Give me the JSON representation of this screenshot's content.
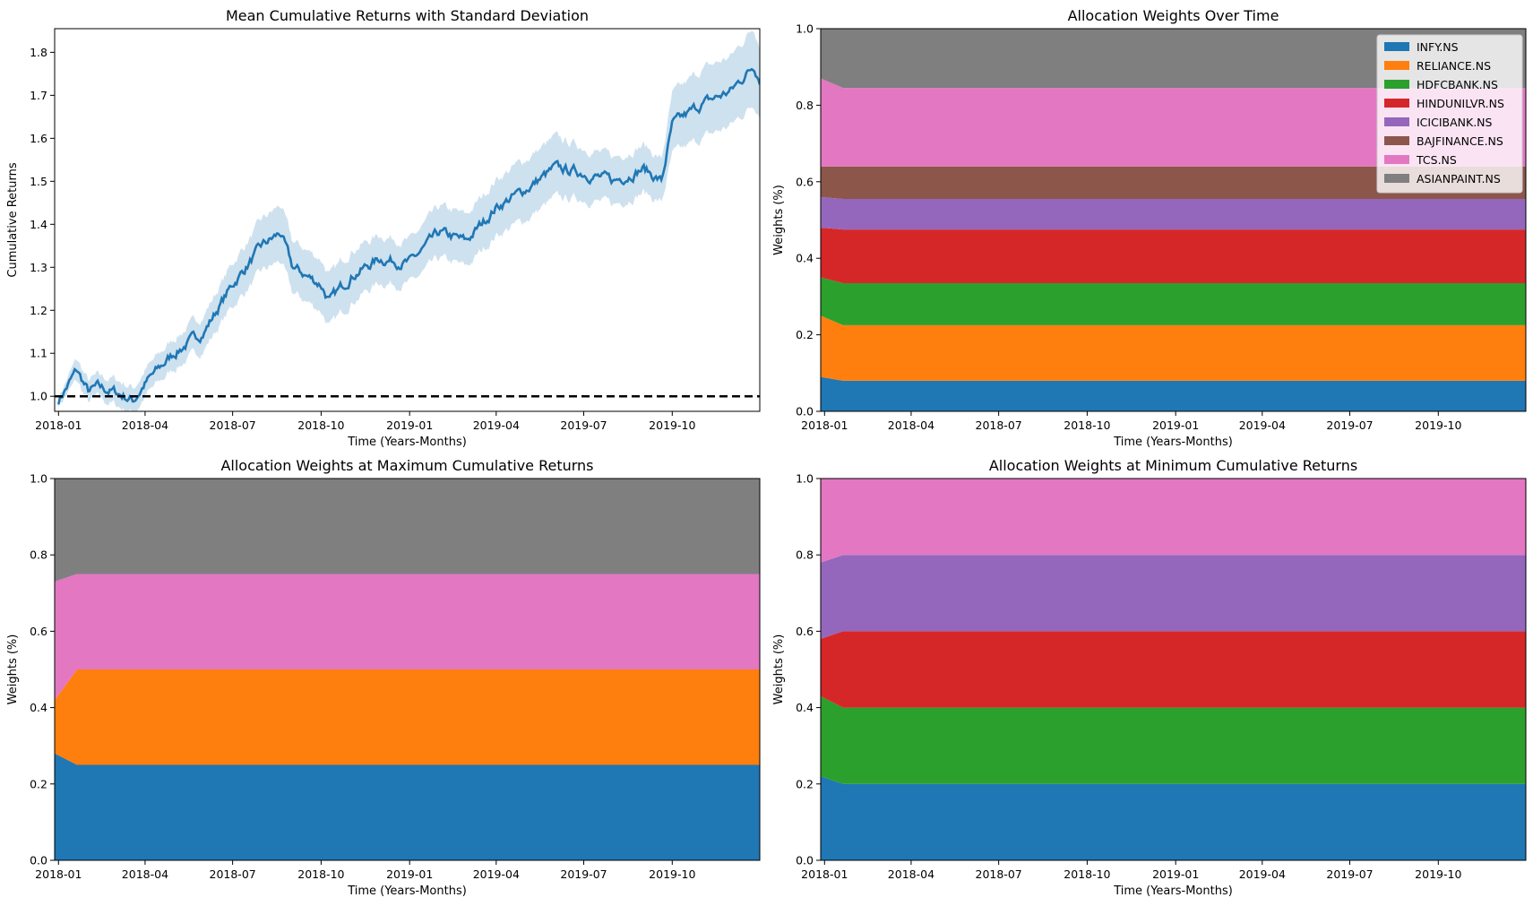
{
  "stocks": [
    {
      "name": "INFY.NS",
      "color": "#1f77b4"
    },
    {
      "name": "RELIANCE.NS",
      "color": "#ff7f0e"
    },
    {
      "name": "HDFCBANK.NS",
      "color": "#2ca02c"
    },
    {
      "name": "HINDUNILVR.NS",
      "color": "#d62728"
    },
    {
      "name": "ICICIBANK.NS",
      "color": "#9467bd"
    },
    {
      "name": "BAJFINANCE.NS",
      "color": "#8c564b"
    },
    {
      "name": "TCS.NS",
      "color": "#e377c2"
    },
    {
      "name": "ASIANPAINT.NS",
      "color": "#7f7f7f"
    }
  ],
  "x_ticks": [
    "2018-01",
    "2018-04",
    "2018-07",
    "2018-10",
    "2019-01",
    "2019-04",
    "2019-07",
    "2019-10"
  ],
  "chart_data": [
    {
      "type": "line",
      "title": "Mean Cumulative Returns with Standard Deviation",
      "xlabel": "Time (Years-Months)",
      "ylabel": "Cumulative Returns",
      "xlim": [
        "2017-12-28",
        "2019-12-31"
      ],
      "ylim": [
        0.965,
        1.855
      ],
      "y_ticks": [
        "1.0",
        "1.1",
        "1.2",
        "1.3",
        "1.4",
        "1.5",
        "1.6",
        "1.7",
        "1.8"
      ],
      "reference_line": {
        "y": 1.0,
        "style": "dashed",
        "color": "#000000"
      },
      "line_color": "#1f77b4",
      "band_color": "#1f77b4",
      "series": [
        {
          "dates": [
            "2018-01-01",
            "2018-01-20",
            "2018-02-01",
            "2018-02-10",
            "2018-03-01",
            "2018-03-20",
            "2018-04-01",
            "2018-05-01",
            "2018-06-01",
            "2018-07-01",
            "2018-08-01",
            "2018-08-20",
            "2018-09-01",
            "2018-10-01",
            "2018-10-10",
            "2018-11-01",
            "2018-12-01",
            "2019-01-01",
            "2019-02-01",
            "2019-03-01",
            "2019-04-01",
            "2019-05-01",
            "2019-06-01",
            "2019-07-01",
            "2019-08-01",
            "2019-09-01",
            "2019-09-20",
            "2019-10-01",
            "2019-11-01",
            "2019-12-01",
            "2019-12-25",
            "2019-12-31"
          ],
          "mean": [
            0.99,
            1.06,
            1.01,
            1.02,
            1.01,
            0.99,
            1.03,
            1.1,
            1.15,
            1.26,
            1.35,
            1.38,
            1.3,
            1.26,
            1.22,
            1.28,
            1.32,
            1.31,
            1.38,
            1.36,
            1.44,
            1.48,
            1.53,
            1.52,
            1.5,
            1.53,
            1.5,
            1.63,
            1.68,
            1.71,
            1.77,
            1.74
          ],
          "std": [
            0.01,
            0.025,
            0.025,
            0.025,
            0.03,
            0.03,
            0.03,
            0.035,
            0.04,
            0.05,
            0.06,
            0.065,
            0.06,
            0.06,
            0.06,
            0.06,
            0.055,
            0.05,
            0.06,
            0.06,
            0.065,
            0.07,
            0.07,
            0.06,
            0.055,
            0.055,
            0.05,
            0.07,
            0.08,
            0.08,
            0.09,
            0.08
          ]
        }
      ]
    },
    {
      "type": "area",
      "stacked": true,
      "title": "Allocation Weights Over Time",
      "xlabel": "Time (Years-Months)",
      "ylabel": "Weights (%)",
      "ylim": [
        0,
        1
      ],
      "y_ticks": [
        "0.0",
        "0.2",
        "0.4",
        "0.6",
        "0.8",
        "1.0"
      ],
      "legend_position": "top-right",
      "start_weights": [
        0.09,
        0.16,
        0.1,
        0.13,
        0.08,
        0.08,
        0.23,
        0.13
      ],
      "weights": [
        0.08,
        0.145,
        0.11,
        0.14,
        0.08,
        0.085,
        0.205,
        0.155
      ]
    },
    {
      "type": "area",
      "stacked": true,
      "title": "Allocation Weights at Maximum Cumulative Returns",
      "xlabel": "Time (Years-Months)",
      "ylabel": "Weights (%)",
      "ylim": [
        0,
        1
      ],
      "y_ticks": [
        "0.0",
        "0.2",
        "0.4",
        "0.6",
        "0.8",
        "1.0"
      ],
      "start_weights": [
        0.28,
        0.14,
        0,
        0,
        0,
        0,
        0.31,
        0.27
      ],
      "weights": [
        0.25,
        0.25,
        0,
        0,
        0,
        0,
        0.25,
        0.25
      ]
    },
    {
      "type": "area",
      "stacked": true,
      "title": "Allocation Weights at Minimum Cumulative Returns",
      "xlabel": "Time (Years-Months)",
      "ylabel": "Weights (%)",
      "ylim": [
        0,
        1
      ],
      "y_ticks": [
        "0.0",
        "0.2",
        "0.4",
        "0.6",
        "0.8",
        "1.0"
      ],
      "start_weights": [
        0.22,
        0.0,
        0.21,
        0.15,
        0.2,
        0.0,
        0.22,
        0.0
      ],
      "weights": [
        0.2,
        0.0,
        0.2,
        0.2,
        0.2,
        0.0,
        0.2,
        0.0
      ]
    }
  ]
}
